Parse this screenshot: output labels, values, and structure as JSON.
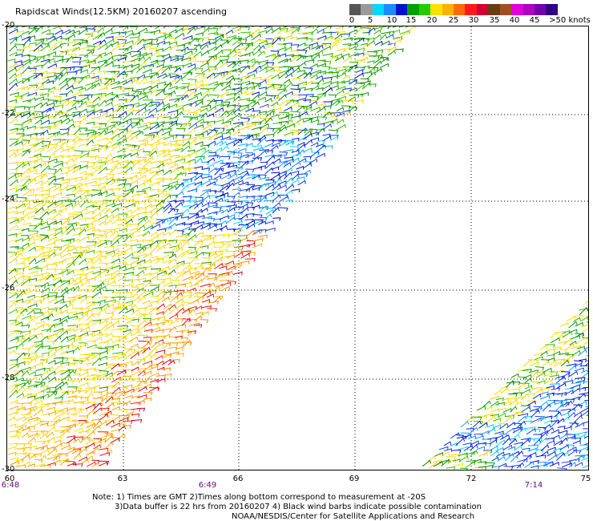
{
  "title": "Rapidscat Winds(12.5KM) 20160207 ascending",
  "legend": {
    "colors": [
      "#555555",
      "#9a9a9a",
      "#00d8ff",
      "#1a8cff",
      "#0011cc",
      "#00a000",
      "#22cc00",
      "#ffe000",
      "#ffb000",
      "#ff6a00",
      "#ff1a1a",
      "#d00030",
      "#6b3b10",
      "#a05020",
      "#e000e0",
      "#b000c0",
      "#7000b0",
      "#300080"
    ],
    "labels": [
      "0",
      "5",
      "10",
      "15",
      "20",
      "25",
      "30",
      "35",
      "40",
      "45",
      ">50 knots"
    ]
  },
  "axes": {
    "lat_labels": [
      "-20",
      "-22",
      "-24",
      "-26",
      "-28",
      "-30"
    ],
    "lon_labels": [
      "60",
      "63",
      "66",
      "69",
      "72",
      "75"
    ],
    "time_labels": [
      "6:48",
      "6:49",
      "7:14"
    ]
  },
  "notes": {
    "line1": "Note: 1) Times are GMT 2)Times along bottom correspond to measurement at -20S",
    "line2": "3)Data buffer is 22 hrs from 20160207 4) Black wind barbs indicate possible contamination",
    "line3": "NOAA/NESDIS/Center for Satellite Applications and Research"
  }
}
